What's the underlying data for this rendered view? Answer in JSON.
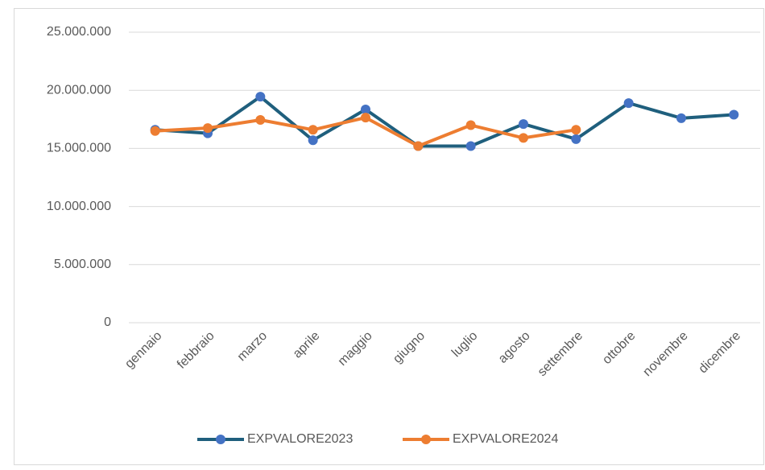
{
  "chart_data": {
    "type": "line",
    "categories": [
      "gennaio",
      "febbraio",
      "marzo",
      "aprile",
      "maggio",
      "giugno",
      "luglio",
      "agosto",
      "settembre",
      "ottobre",
      "novembre",
      "dicembre"
    ],
    "series": [
      {
        "name": "EXPVALORE2023",
        "color": "#1f5f7d",
        "marker_color": "#4472c4",
        "values": [
          16600000,
          16300000,
          19450000,
          15700000,
          18350000,
          15200000,
          15200000,
          17100000,
          15800000,
          18900000,
          17600000,
          17900000
        ]
      },
      {
        "name": "EXPVALORE2024",
        "color": "#ed7d31",
        "marker_color": "#ed7d31",
        "values": [
          16500000,
          16750000,
          17450000,
          16600000,
          17650000,
          15200000,
          17000000,
          15900000,
          16600000,
          null,
          null,
          null
        ]
      }
    ],
    "ylim": [
      0,
      25000000
    ],
    "yticks": [
      0,
      {
        "value": 5000000,
        "label": "5.000.000"
      },
      {
        "value": 10000000,
        "label": "10.000.000"
      },
      {
        "value": 15000000,
        "label": "15.000.000"
      },
      {
        "value": 20000000,
        "label": "20.000.000"
      },
      {
        "value": 25000000,
        "label": "25.000.000"
      }
    ],
    "grid": true,
    "legend": "bottom"
  }
}
